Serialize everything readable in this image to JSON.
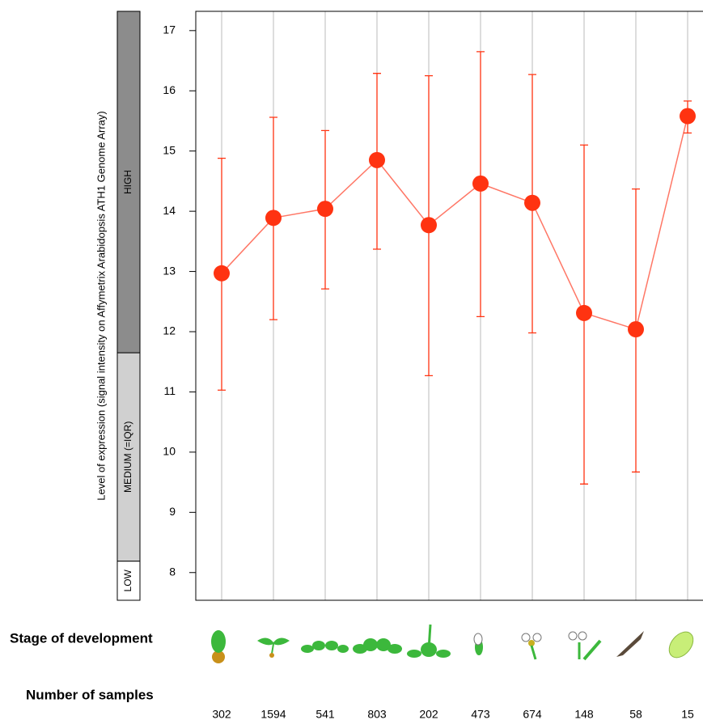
{
  "chart_data": {
    "type": "line",
    "y_label": "Level of expression (signal intensity on Affymetrix Arabidopsis ATH1 Genome Array)",
    "categories": [
      null,
      null,
      null,
      null,
      null,
      null,
      null,
      null,
      null,
      null
    ],
    "series": [
      {
        "color": "#ff3311",
        "line_color": "#ff7766",
        "values": [
          12.97,
          13.89,
          14.04,
          14.85,
          13.77,
          14.46,
          14.14,
          12.31,
          12.04,
          15.58
        ],
        "upper": [
          14.88,
          15.56,
          15.34,
          16.29,
          16.25,
          16.65,
          16.27,
          15.1,
          14.37,
          15.83
        ],
        "lower": [
          11.03,
          12.2,
          12.71,
          13.37,
          11.27,
          12.25,
          11.98,
          9.47,
          9.67,
          15.3
        ]
      }
    ],
    "ylim": [
      7.54,
      17.32
    ],
    "yticks": [
      8,
      9,
      10,
      11,
      12,
      13,
      14,
      15,
      16,
      17
    ],
    "grid": true,
    "level_bands": [
      {
        "name": "LOW",
        "from": 7.54,
        "to": 8.19,
        "color": "#ffffff",
        "text_color": "#000000"
      },
      {
        "name": "MEDIUM (=IQR)",
        "from": 8.19,
        "to": 11.65,
        "color": "#d0d0d0",
        "text_color": "#333333"
      },
      {
        "name": "HIGH",
        "from": 11.65,
        "to": 17.32,
        "color": "#8c8c8c",
        "text_color": "#ffffff"
      }
    ],
    "stage_label": "Stage of development",
    "samples_label": "Number of samples",
    "sample_counts": [
      "302",
      "1594",
      "541",
      "803",
      "202",
      "473",
      "674",
      "148",
      "58",
      "15"
    ]
  }
}
